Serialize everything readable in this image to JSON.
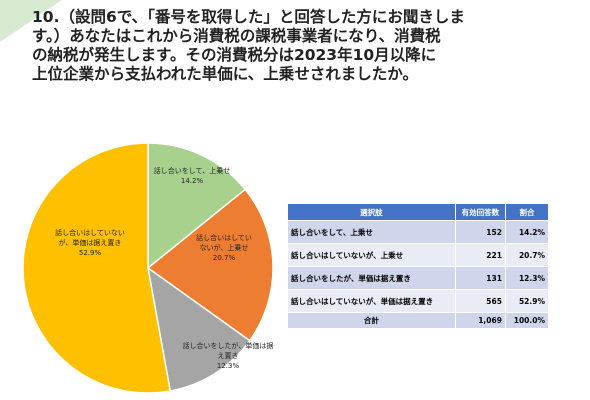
{
  "title_lines": [
    "10.（設問6で、「番号を取得した」と回答した方にお聞きしま",
    "す。）あなたはこれから消費税の課税事業者になり、消費税",
    "の納税が発生します。その消費税分は2023年10月以降に",
    "上位企業から支払われた単価に、上乗せされましたか。"
  ],
  "chart_data": {
    "type": "pie",
    "categories": [
      "話し合いをして、上乗せ",
      "話し合いはしていないが、上乗せ",
      "話し合いをしたが、単価は据え置き",
      "話し合いはしていないが、単価は据え置き"
    ],
    "values": [
      14.2,
      20.7,
      12.3,
      52.9
    ],
    "value_labels": [
      "14.2%",
      "20.7%",
      "12.3%",
      "52.9%"
    ],
    "colors": [
      "#a9d18e",
      "#ed7d31",
      "#a5a5a5",
      "#ffc000"
    ]
  },
  "table": {
    "header": [
      "選択肢",
      "有効回答数",
      "割合"
    ],
    "rows": [
      [
        "話し合いをして、上乗せ",
        "152",
        "14.2%"
      ],
      [
        "話し合いはしていないが、上乗せ",
        "221",
        "20.7%"
      ],
      [
        "話し合いをしたが、単価は据え置き",
        "131",
        "12.3%"
      ],
      [
        "話し合いはしていないが、単価は据え置き",
        "565",
        "52.9%"
      ]
    ],
    "total": [
      "合計",
      "1,069",
      "100.0%"
    ]
  }
}
